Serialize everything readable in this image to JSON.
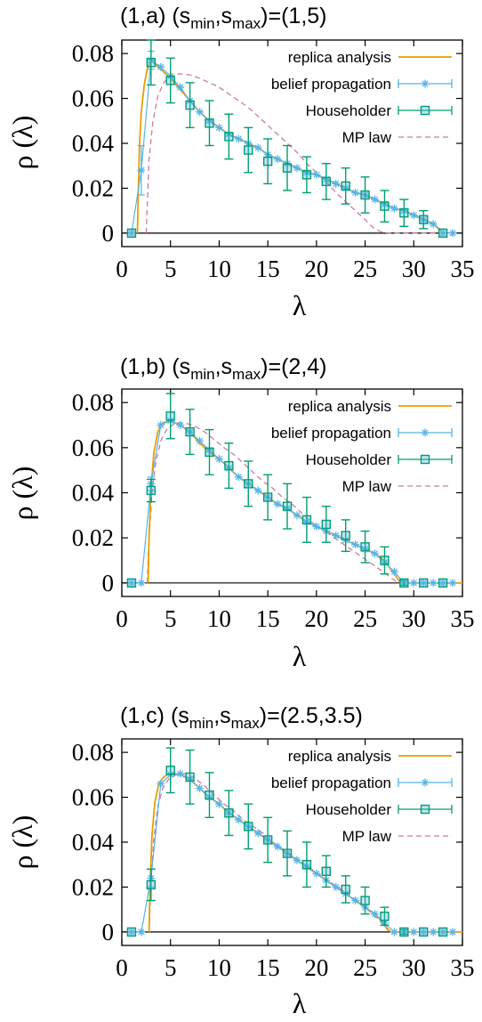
{
  "chart_data": [
    {
      "type": "line",
      "title": "(1,a) (sₘᵢₙ,sₘₐₓ)=(1,5)",
      "title_parts": {
        "prefix": "(1,a) (s",
        "sub1": "min",
        "mid": ",s",
        "sub2": "max",
        "suffix": ")=(1,5)"
      },
      "xlabel": "λ",
      "ylabel": "ρ (λ)",
      "xlim": [
        0,
        35
      ],
      "ylim": [
        -0.006,
        0.086
      ],
      "xticks": [
        "0",
        "5",
        "10",
        "15",
        "20",
        "25",
        "30",
        "35"
      ],
      "yticks": [
        "0",
        "0.02",
        "0.04",
        "0.06",
        "0.08"
      ],
      "legend_position": "top-right",
      "series": [
        {
          "name": "replica analysis",
          "style": "solid",
          "color": "#e69f00",
          "x": [
            1.6,
            1.8,
            2.0,
            2.3,
            2.6,
            3.0,
            4,
            5,
            6,
            7,
            8,
            9,
            10,
            11,
            12,
            13,
            14,
            15,
            16,
            17,
            18,
            19,
            20,
            21,
            22,
            23,
            24,
            25,
            26,
            27,
            28,
            29,
            30,
            31,
            32,
            32.6,
            32.9,
            33.1
          ],
          "y": [
            0,
            0.038,
            0.054,
            0.066,
            0.073,
            0.077,
            0.073,
            0.069,
            0.064,
            0.059,
            0.054,
            0.05,
            0.047,
            0.044,
            0.042,
            0.04,
            0.038,
            0.035,
            0.033,
            0.031,
            0.029,
            0.027,
            0.026,
            0.024,
            0.022,
            0.02,
            0.018,
            0.017,
            0.015,
            0.013,
            0.011,
            0.01,
            0.008,
            0.006,
            0.004,
            0.002,
            0.0005,
            0
          ]
        },
        {
          "name": "belief propagation",
          "style": "points",
          "color": "#56b4e9",
          "x": [
            1,
            2,
            3,
            4,
            5,
            6,
            7,
            8,
            9,
            10,
            11,
            12,
            13,
            14,
            15,
            16,
            17,
            18,
            19,
            20,
            21,
            22,
            23,
            24,
            25,
            26,
            27,
            28,
            29,
            30,
            31,
            32,
            33,
            34
          ],
          "y": [
            0,
            0.028,
            0.077,
            0.074,
            0.07,
            0.065,
            0.059,
            0.054,
            0.05,
            0.047,
            0.044,
            0.042,
            0.04,
            0.038,
            0.035,
            0.033,
            0.031,
            0.029,
            0.027,
            0.026,
            0.024,
            0.022,
            0.02,
            0.018,
            0.017,
            0.015,
            0.013,
            0.011,
            0.01,
            0.008,
            0.006,
            0.004,
            0,
            0
          ],
          "err": [
            0,
            0.011,
            0.004,
            0,
            0,
            0,
            0,
            0,
            0,
            0,
            0,
            0,
            0,
            0,
            0,
            0,
            0,
            0,
            0,
            0,
            0,
            0,
            0,
            0,
            0,
            0,
            0,
            0,
            0,
            0,
            0,
            0,
            0,
            0
          ]
        },
        {
          "name": "Householder",
          "style": "points",
          "color": "#009e73",
          "x": [
            1,
            3,
            5,
            7,
            9,
            11,
            13,
            15,
            17,
            19,
            21,
            23,
            25,
            27,
            29,
            31,
            33
          ],
          "y": [
            0,
            0.076,
            0.068,
            0.057,
            0.049,
            0.043,
            0.037,
            0.032,
            0.029,
            0.026,
            0.023,
            0.021,
            0.017,
            0.012,
            0.009,
            0.006,
            0
          ],
          "err": [
            0,
            0.01,
            0.01,
            0.01,
            0.01,
            0.01,
            0.01,
            0.01,
            0.01,
            0.008,
            0.008,
            0.008,
            0.008,
            0.007,
            0.006,
            0.004,
            0
          ]
        },
        {
          "name": "MP law",
          "style": "dashed",
          "color": "#cc79a7",
          "x": [
            2.5,
            2.8,
            3.2,
            3.7,
            4.3,
            5,
            6,
            7,
            8,
            9,
            10,
            11,
            12,
            13,
            14,
            15,
            16,
            17,
            18,
            19,
            20,
            21,
            22,
            23,
            24,
            25,
            25.8,
            26.5,
            27.1,
            27.6,
            28,
            29,
            30,
            31,
            32,
            33,
            34
          ],
          "y": [
            0,
            0.033,
            0.05,
            0.061,
            0.067,
            0.07,
            0.071,
            0.0705,
            0.069,
            0.067,
            0.065,
            0.062,
            0.059,
            0.056,
            0.052,
            0.048,
            0.044,
            0.04,
            0.036,
            0.031,
            0.027,
            0.023,
            0.018,
            0.014,
            0.01,
            0.006,
            0.0025,
            0.0008,
            0.0002,
            0,
            0,
            0,
            0,
            0,
            0,
            0,
            0
          ]
        }
      ]
    },
    {
      "type": "line",
      "title": "(1,b) (sₘᵢₙ,sₘₐₓ)=(2,4)",
      "title_parts": {
        "prefix": "(1,b) (s",
        "sub1": "min",
        "mid": ",s",
        "sub2": "max",
        "suffix": ")=(2,4)"
      },
      "xlabel": "λ",
      "ylabel": "ρ (λ)",
      "xlim": [
        0,
        35
      ],
      "ylim": [
        -0.006,
        0.086
      ],
      "xticks": [
        "0",
        "5",
        "10",
        "15",
        "20",
        "25",
        "30",
        "35"
      ],
      "yticks": [
        "0",
        "0.02",
        "0.04",
        "0.06",
        "0.08"
      ],
      "legend_position": "top-right",
      "series": [
        {
          "name": "replica analysis",
          "style": "solid",
          "color": "#e69f00",
          "x": [
            2.7,
            2.8,
            3.0,
            3.3,
            3.7,
            4.2,
            5,
            6,
            7,
            8,
            9,
            10,
            11,
            12,
            13,
            14,
            15,
            16,
            17,
            18,
            19,
            20,
            21,
            22,
            23,
            24,
            25,
            26,
            27,
            27.5,
            28,
            28.4,
            28.7,
            29,
            31,
            33,
            35
          ],
          "y": [
            0,
            0.02,
            0.042,
            0.058,
            0.067,
            0.071,
            0.072,
            0.07,
            0.067,
            0.062,
            0.058,
            0.055,
            0.051,
            0.047,
            0.044,
            0.041,
            0.038,
            0.035,
            0.033,
            0.03,
            0.027,
            0.025,
            0.023,
            0.021,
            0.019,
            0.017,
            0.015,
            0.013,
            0.01,
            0.007,
            0.004,
            0.0015,
            0,
            0,
            0,
            0,
            0
          ]
        },
        {
          "name": "belief propagation",
          "style": "points",
          "color": "#56b4e9",
          "x": [
            1,
            2,
            3,
            4,
            5,
            6,
            7,
            8,
            9,
            10,
            11,
            12,
            13,
            14,
            15,
            16,
            17,
            18,
            19,
            20,
            21,
            22,
            23,
            24,
            25,
            26,
            27,
            28,
            29,
            30,
            31,
            32,
            33,
            34
          ],
          "y": [
            0,
            0,
            0.044,
            0.07,
            0.072,
            0.07,
            0.067,
            0.063,
            0.059,
            0.055,
            0.051,
            0.047,
            0.044,
            0.041,
            0.038,
            0.035,
            0.033,
            0.03,
            0.027,
            0.025,
            0.023,
            0.021,
            0.019,
            0.017,
            0.015,
            0.013,
            0.009,
            0.005,
            0,
            0,
            0,
            0,
            0,
            0
          ],
          "err": [
            0,
            0,
            0.003,
            0,
            0,
            0,
            0,
            0,
            0,
            0,
            0,
            0,
            0,
            0,
            0,
            0,
            0,
            0,
            0,
            0,
            0,
            0,
            0,
            0,
            0,
            0,
            0,
            0,
            0,
            0,
            0,
            0,
            0,
            0
          ]
        },
        {
          "name": "Householder",
          "style": "points",
          "color": "#009e73",
          "x": [
            1,
            3,
            5,
            7,
            9,
            11,
            13,
            15,
            17,
            19,
            21,
            23,
            25,
            27,
            29,
            31,
            33
          ],
          "y": [
            0,
            0.041,
            0.074,
            0.067,
            0.058,
            0.052,
            0.044,
            0.038,
            0.034,
            0.028,
            0.026,
            0.021,
            0.016,
            0.01,
            0,
            0,
            0
          ],
          "err": [
            0,
            0.005,
            0.01,
            0.01,
            0.01,
            0.01,
            0.01,
            0.01,
            0.01,
            0.01,
            0.008,
            0.007,
            0.007,
            0.006,
            0.001,
            0,
            0
          ]
        },
        {
          "name": "MP law",
          "style": "dashed",
          "color": "#cc79a7",
          "x": [
            2.6,
            2.8,
            3.1,
            3.5,
            4,
            4.6,
            5.5,
            6.5,
            7.5,
            8.5,
            9.5,
            10.5,
            11.5,
            12.5,
            13.5,
            14.5,
            15.5,
            16.5,
            17.5,
            18.5,
            19.5,
            20.5,
            21.5,
            22.5,
            23.5,
            24.5,
            25.5,
            26.5,
            27.3,
            27.9,
            28.3,
            28.6,
            29,
            31,
            33,
            35
          ],
          "y": [
            0,
            0.02,
            0.04,
            0.054,
            0.063,
            0.068,
            0.071,
            0.071,
            0.0695,
            0.067,
            0.0635,
            0.06,
            0.057,
            0.053,
            0.049,
            0.045,
            0.042,
            0.038,
            0.035,
            0.031,
            0.027,
            0.024,
            0.021,
            0.018,
            0.015,
            0.012,
            0.009,
            0.006,
            0.0035,
            0.0015,
            0.0004,
            0,
            0,
            0,
            0,
            0
          ]
        }
      ]
    },
    {
      "type": "line",
      "title": "(1,c) (sₘᵢₙ,sₘₐₓ)=(2.5,3.5)",
      "title_parts": {
        "prefix": "(1,c) (s",
        "sub1": "min",
        "mid": ",s",
        "sub2": "max",
        "suffix": ")=(2.5,3.5)"
      },
      "xlabel": "λ",
      "ylabel": "ρ (λ)",
      "xlim": [
        0,
        35
      ],
      "ylim": [
        -0.006,
        0.086
      ],
      "xticks": [
        "0",
        "5",
        "10",
        "15",
        "20",
        "25",
        "30",
        "35"
      ],
      "yticks": [
        "0",
        "0.02",
        "0.04",
        "0.06",
        "0.08"
      ],
      "legend_position": "top-right",
      "series": [
        {
          "name": "replica analysis",
          "style": "solid",
          "color": "#e69f00",
          "x": [
            2.8,
            2.9,
            3.1,
            3.4,
            3.8,
            4.3,
            5,
            6,
            7,
            8,
            9,
            10,
            11,
            12,
            13,
            14,
            15,
            16,
            17,
            18,
            19,
            20,
            21,
            22,
            23,
            24,
            25,
            26,
            26.7,
            27.2,
            27.5,
            27.7,
            29,
            31,
            33,
            35
          ],
          "y": [
            0,
            0.02,
            0.043,
            0.058,
            0.066,
            0.069,
            0.071,
            0.07,
            0.068,
            0.064,
            0.06,
            0.057,
            0.053,
            0.05,
            0.047,
            0.044,
            0.041,
            0.038,
            0.035,
            0.032,
            0.029,
            0.026,
            0.023,
            0.02,
            0.017,
            0.014,
            0.011,
            0.008,
            0.005,
            0.002,
            0.0005,
            0,
            0,
            0,
            0,
            0
          ]
        },
        {
          "name": "belief propagation",
          "style": "points",
          "color": "#56b4e9",
          "x": [
            1,
            2,
            3,
            4,
            5,
            6,
            7,
            8,
            9,
            10,
            11,
            12,
            13,
            14,
            15,
            16,
            17,
            18,
            19,
            20,
            21,
            22,
            23,
            24,
            25,
            26,
            27,
            28,
            29,
            30,
            31,
            32,
            33,
            34
          ],
          "y": [
            0,
            0,
            0.024,
            0.066,
            0.07,
            0.0705,
            0.068,
            0.064,
            0.06,
            0.057,
            0.053,
            0.05,
            0.047,
            0.044,
            0.041,
            0.038,
            0.035,
            0.032,
            0.029,
            0.026,
            0.023,
            0.02,
            0.017,
            0.014,
            0.011,
            0.008,
            0.004,
            0,
            0,
            0,
            0,
            0,
            0,
            0
          ],
          "err": [
            0,
            0,
            0.004,
            0,
            0,
            0,
            0,
            0,
            0,
            0,
            0,
            0,
            0,
            0,
            0,
            0,
            0,
            0,
            0,
            0,
            0,
            0,
            0,
            0,
            0,
            0,
            0,
            0,
            0,
            0,
            0,
            0,
            0,
            0
          ]
        },
        {
          "name": "Householder",
          "style": "points",
          "color": "#009e73",
          "x": [
            1,
            3,
            5,
            7,
            9,
            11,
            13,
            15,
            17,
            19,
            21,
            23,
            25,
            27,
            29,
            31,
            33
          ],
          "y": [
            0,
            0.021,
            0.072,
            0.069,
            0.061,
            0.053,
            0.047,
            0.041,
            0.035,
            0.03,
            0.027,
            0.019,
            0.014,
            0.007,
            0,
            0,
            0
          ],
          "err": [
            0,
            0.007,
            0.01,
            0.012,
            0.01,
            0.01,
            0.01,
            0.01,
            0.01,
            0.01,
            0.007,
            0.006,
            0.006,
            0.004,
            0.001,
            0,
            0
          ]
        },
        {
          "name": "MP law",
          "style": "dashed",
          "color": "#cc79a7",
          "x": [
            2.8,
            3.0,
            3.3,
            3.7,
            4.2,
            4.8,
            5.6,
            6.5,
            7.5,
            8.5,
            9.5,
            10.5,
            11.5,
            12.5,
            13.5,
            14.5,
            15.5,
            16.5,
            17.5,
            18.5,
            19.5,
            20.5,
            21.5,
            22.5,
            23.5,
            24.5,
            25.5,
            26.3,
            26.9,
            27.3,
            27.6,
            29,
            31,
            33,
            35
          ],
          "y": [
            0,
            0.022,
            0.042,
            0.056,
            0.064,
            0.068,
            0.07,
            0.0705,
            0.0685,
            0.065,
            0.061,
            0.057,
            0.054,
            0.05,
            0.047,
            0.044,
            0.04,
            0.037,
            0.034,
            0.031,
            0.028,
            0.025,
            0.022,
            0.019,
            0.016,
            0.013,
            0.009,
            0.006,
            0.003,
            0.001,
            0,
            0,
            0,
            0,
            0
          ]
        }
      ]
    }
  ]
}
